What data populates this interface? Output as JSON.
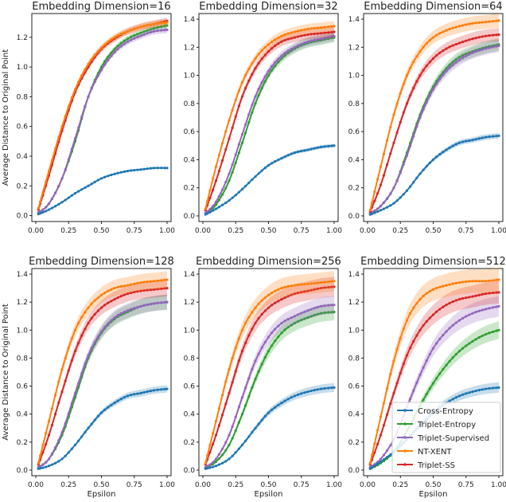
{
  "chart_data": [
    {
      "type": "line",
      "title": "Embedding Dimension=16",
      "xlabel": "",
      "ylabel": "Average Distance to Original Point",
      "xlim": [
        0,
        1
      ],
      "ylim": [
        -0.04,
        1.36
      ],
      "xticks": [
        "0.00",
        "0.25",
        "0.50",
        "0.75",
        "1.00"
      ],
      "yticks": [
        "0.0",
        "0.2",
        "0.4",
        "0.6",
        "0.8",
        "1.0",
        "1.2"
      ],
      "x": [
        0.02,
        0.1,
        0.2,
        0.3,
        0.4,
        0.5,
        0.6,
        0.7,
        0.8,
        0.9,
        1.0
      ],
      "series": [
        {
          "name": "Cross-Entropy",
          "values": [
            0.01,
            0.04,
            0.09,
            0.15,
            0.2,
            0.25,
            0.28,
            0.3,
            0.31,
            0.32,
            0.32
          ]
        },
        {
          "name": "Triplet-Entropy",
          "values": [
            0.02,
            0.08,
            0.25,
            0.5,
            0.8,
            1.0,
            1.12,
            1.19,
            1.23,
            1.26,
            1.28
          ]
        },
        {
          "name": "Triplet-Supervised",
          "values": [
            0.02,
            0.08,
            0.25,
            0.52,
            0.8,
            0.98,
            1.1,
            1.17,
            1.21,
            1.24,
            1.25
          ]
        },
        {
          "name": "NT-XENT",
          "values": [
            0.05,
            0.3,
            0.6,
            0.85,
            1.02,
            1.13,
            1.2,
            1.24,
            1.27,
            1.29,
            1.3
          ]
        },
        {
          "name": "Triplet-SS",
          "values": [
            0.04,
            0.27,
            0.57,
            0.83,
            1.0,
            1.12,
            1.19,
            1.24,
            1.27,
            1.29,
            1.31
          ]
        }
      ]
    },
    {
      "type": "line",
      "title": "Embedding Dimension=32",
      "xlabel": "",
      "ylabel": "",
      "xlim": [
        0,
        1
      ],
      "ylim": [
        -0.04,
        1.44
      ],
      "xticks": [
        "0.00",
        "0.25",
        "0.50",
        "0.75",
        "1.00"
      ],
      "yticks": [
        "0.0",
        "0.2",
        "0.4",
        "0.6",
        "0.8",
        "1.0",
        "1.2",
        "1.4"
      ],
      "x": [
        0.02,
        0.1,
        0.2,
        0.3,
        0.4,
        0.5,
        0.6,
        0.7,
        0.8,
        0.9,
        1.0
      ],
      "series": [
        {
          "name": "Cross-Entropy",
          "values": [
            0.01,
            0.05,
            0.11,
            0.19,
            0.28,
            0.36,
            0.41,
            0.45,
            0.47,
            0.49,
            0.5
          ]
        },
        {
          "name": "Triplet-Entropy",
          "values": [
            0.02,
            0.08,
            0.25,
            0.52,
            0.8,
            1.0,
            1.12,
            1.19,
            1.23,
            1.25,
            1.27
          ]
        },
        {
          "name": "Triplet-Supervised",
          "values": [
            0.02,
            0.1,
            0.3,
            0.58,
            0.85,
            1.03,
            1.14,
            1.2,
            1.24,
            1.26,
            1.28
          ]
        },
        {
          "name": "NT-XENT",
          "values": [
            0.05,
            0.35,
            0.68,
            0.95,
            1.12,
            1.22,
            1.28,
            1.31,
            1.33,
            1.34,
            1.35
          ]
        },
        {
          "name": "Triplet-SS",
          "values": [
            0.04,
            0.25,
            0.55,
            0.85,
            1.05,
            1.17,
            1.24,
            1.27,
            1.29,
            1.3,
            1.31
          ]
        }
      ]
    },
    {
      "type": "line",
      "title": "Embedding Dimension=64",
      "xlabel": "",
      "ylabel": "",
      "xlim": [
        0,
        1
      ],
      "ylim": [
        -0.04,
        1.44
      ],
      "xticks": [
        "0.00",
        "0.25",
        "0.50",
        "0.75",
        "1.00"
      ],
      "yticks": [
        "0.0",
        "0.2",
        "0.4",
        "0.6",
        "0.8",
        "1.0",
        "1.2",
        "1.4"
      ],
      "x": [
        0.02,
        0.1,
        0.2,
        0.3,
        0.4,
        0.5,
        0.6,
        0.7,
        0.8,
        0.9,
        1.0
      ],
      "series": [
        {
          "name": "Cross-Entropy",
          "values": [
            0.01,
            0.04,
            0.09,
            0.18,
            0.3,
            0.4,
            0.47,
            0.52,
            0.54,
            0.56,
            0.57
          ]
        },
        {
          "name": "Triplet-Entropy",
          "values": [
            0.02,
            0.07,
            0.2,
            0.45,
            0.72,
            0.92,
            1.05,
            1.13,
            1.17,
            1.2,
            1.22
          ]
        },
        {
          "name": "Triplet-Supervised",
          "values": [
            0.02,
            0.07,
            0.2,
            0.43,
            0.7,
            0.9,
            1.03,
            1.11,
            1.16,
            1.19,
            1.21
          ]
        },
        {
          "name": "NT-XENT",
          "values": [
            0.04,
            0.35,
            0.72,
            1.0,
            1.17,
            1.27,
            1.32,
            1.35,
            1.37,
            1.38,
            1.39
          ]
        },
        {
          "name": "Triplet-SS",
          "values": [
            0.03,
            0.22,
            0.52,
            0.8,
            1.0,
            1.12,
            1.19,
            1.23,
            1.26,
            1.28,
            1.29
          ]
        }
      ]
    },
    {
      "type": "line",
      "title": "Embedding Dimension=128",
      "xlabel": "Epsilon",
      "ylabel": "Average Distance to Original Point",
      "xlim": [
        0,
        1
      ],
      "ylim": [
        -0.04,
        1.44
      ],
      "xticks": [
        "0.00",
        "0.25",
        "0.50",
        "0.75",
        "1.00"
      ],
      "yticks": [
        "0.0",
        "0.2",
        "0.4",
        "0.6",
        "0.8",
        "1.0",
        "1.2",
        "1.4"
      ],
      "x": [
        0.02,
        0.1,
        0.2,
        0.3,
        0.4,
        0.5,
        0.6,
        0.7,
        0.8,
        0.9,
        1.0
      ],
      "series": [
        {
          "name": "Cross-Entropy",
          "values": [
            0.01,
            0.03,
            0.08,
            0.18,
            0.3,
            0.41,
            0.48,
            0.53,
            0.55,
            0.57,
            0.58
          ]
        },
        {
          "name": "Triplet-Entropy",
          "values": [
            0.02,
            0.08,
            0.25,
            0.52,
            0.8,
            0.98,
            1.08,
            1.13,
            1.17,
            1.19,
            1.2
          ]
        },
        {
          "name": "Triplet-Supervised",
          "values": [
            0.02,
            0.08,
            0.27,
            0.55,
            0.82,
            0.99,
            1.09,
            1.14,
            1.17,
            1.19,
            1.2
          ]
        },
        {
          "name": "NT-XENT",
          "values": [
            0.05,
            0.35,
            0.72,
            1.0,
            1.16,
            1.25,
            1.3,
            1.32,
            1.34,
            1.35,
            1.36
          ]
        },
        {
          "name": "Triplet-SS",
          "values": [
            0.04,
            0.25,
            0.56,
            0.85,
            1.05,
            1.16,
            1.22,
            1.26,
            1.28,
            1.29,
            1.3
          ]
        }
      ]
    },
    {
      "type": "line",
      "title": "Embedding Dimension=256",
      "xlabel": "Epsilon",
      "ylabel": "",
      "xlim": [
        0,
        1
      ],
      "ylim": [
        -0.04,
        1.44
      ],
      "xticks": [
        "0.00",
        "0.25",
        "0.50",
        "0.75",
        "1.00"
      ],
      "yticks": [
        "0.0",
        "0.2",
        "0.4",
        "0.6",
        "0.8",
        "1.0",
        "1.2",
        "1.4"
      ],
      "x": [
        0.02,
        0.1,
        0.2,
        0.3,
        0.4,
        0.5,
        0.6,
        0.7,
        0.8,
        0.9,
        1.0
      ],
      "series": [
        {
          "name": "Cross-Entropy",
          "values": [
            0.01,
            0.03,
            0.08,
            0.18,
            0.3,
            0.41,
            0.48,
            0.53,
            0.56,
            0.58,
            0.59
          ]
        },
        {
          "name": "Triplet-Entropy",
          "values": [
            0.02,
            0.06,
            0.18,
            0.4,
            0.65,
            0.85,
            0.98,
            1.05,
            1.09,
            1.12,
            1.13
          ]
        },
        {
          "name": "Triplet-Supervised",
          "values": [
            0.02,
            0.08,
            0.25,
            0.52,
            0.78,
            0.95,
            1.05,
            1.1,
            1.14,
            1.17,
            1.18
          ]
        },
        {
          "name": "NT-XENT",
          "values": [
            0.05,
            0.35,
            0.72,
            1.0,
            1.16,
            1.25,
            1.3,
            1.32,
            1.33,
            1.34,
            1.35
          ]
        },
        {
          "name": "Triplet-SS",
          "values": [
            0.04,
            0.25,
            0.55,
            0.85,
            1.05,
            1.16,
            1.22,
            1.26,
            1.28,
            1.3,
            1.31
          ]
        }
      ]
    },
    {
      "type": "line",
      "title": "Embedding Dimension=512",
      "xlabel": "Epsilon",
      "ylabel": "",
      "xlim": [
        0,
        1
      ],
      "ylim": [
        -0.04,
        1.44
      ],
      "xticks": [
        "0.00",
        "0.25",
        "0.50",
        "0.75",
        "1.00"
      ],
      "yticks": [
        "0.0",
        "0.2",
        "0.4",
        "0.6",
        "0.8",
        "1.0",
        "1.2",
        "1.4"
      ],
      "legend": "bottom-right",
      "x": [
        0.02,
        0.1,
        0.2,
        0.3,
        0.4,
        0.5,
        0.6,
        0.7,
        0.8,
        0.9,
        1.0
      ],
      "series": [
        {
          "name": "Cross-Entropy",
          "values": [
            0.01,
            0.06,
            0.13,
            0.22,
            0.32,
            0.41,
            0.48,
            0.53,
            0.56,
            0.58,
            0.59
          ]
        },
        {
          "name": "Triplet-Entropy",
          "values": [
            0.01,
            0.05,
            0.13,
            0.28,
            0.46,
            0.62,
            0.75,
            0.85,
            0.92,
            0.97,
            1.0
          ]
        },
        {
          "name": "Triplet-Supervised",
          "values": [
            0.02,
            0.08,
            0.22,
            0.45,
            0.68,
            0.87,
            0.99,
            1.07,
            1.12,
            1.15,
            1.17
          ]
        },
        {
          "name": "NT-XENT",
          "values": [
            0.05,
            0.38,
            0.78,
            1.07,
            1.22,
            1.29,
            1.32,
            1.34,
            1.35,
            1.35,
            1.36
          ]
        },
        {
          "name": "Triplet-SS",
          "values": [
            0.04,
            0.25,
            0.55,
            0.82,
            1.0,
            1.11,
            1.18,
            1.22,
            1.24,
            1.26,
            1.27
          ]
        }
      ]
    }
  ],
  "colors": {
    "Cross-Entropy": "#1f77b4",
    "Triplet-Entropy": "#2ca02c",
    "Triplet-Supervised": "#9467bd",
    "NT-XENT": "#ff7f0e",
    "Triplet-SS": "#d62728"
  }
}
